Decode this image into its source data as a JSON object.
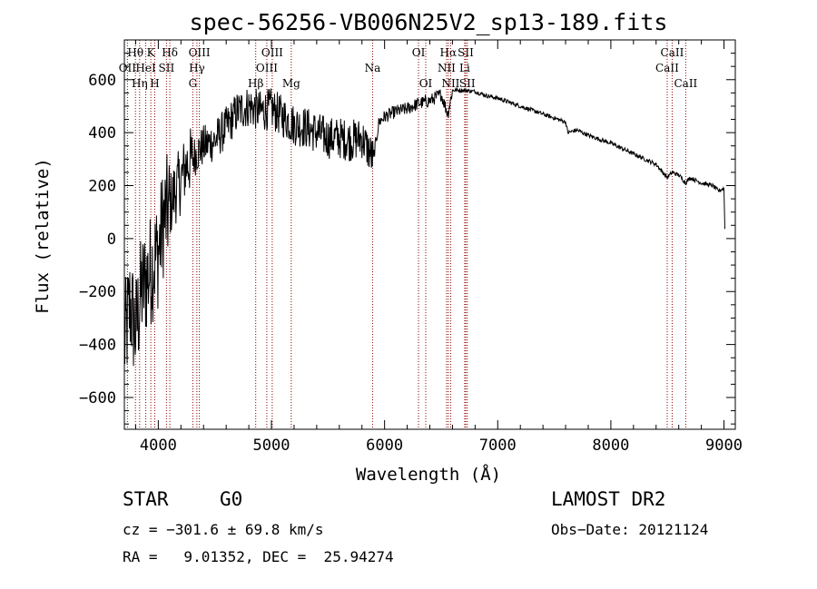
{
  "chart_data": {
    "type": "line",
    "title": "spec-56256-VB006N25V2_sp13-189.fits",
    "xlabel": "Wavelength (Å)",
    "ylabel": "Flux (relative)",
    "xlim": [
      3700,
      9100
    ],
    "ylim": [
      -720,
      750
    ],
    "xticks": [
      4000,
      5000,
      6000,
      7000,
      8000,
      9000
    ],
    "yticks": [
      -600,
      -400,
      -200,
      0,
      200,
      400,
      600
    ],
    "xtick_labels": [
      "4000",
      "5000",
      "6000",
      "7000",
      "8000",
      "9000"
    ],
    "ytick_labels": [
      "−600",
      "−400",
      "−200",
      "0",
      "200",
      "400",
      "600"
    ],
    "grid": false,
    "series": [
      {
        "x": [
          3700,
          3750,
          3800,
          3850,
          3900,
          3950,
          4000,
          4050,
          4100,
          4150,
          4200,
          4250,
          4300,
          4350,
          4400,
          4500,
          4600,
          4700,
          4800,
          4900,
          5000,
          5100,
          5200,
          5300,
          5400,
          5500,
          5600,
          5700,
          5800,
          5900,
          5950,
          6000,
          6100,
          6200,
          6300,
          6400,
          6500,
          6560,
          6600,
          6700,
          6800,
          6900,
          7000,
          7200,
          7400,
          7600,
          7620,
          7700,
          7800,
          8000,
          8200,
          8400,
          8498,
          8542,
          8600,
          8662,
          8700,
          8800,
          8900,
          8950,
          9000,
          9010
        ],
        "y": [
          -400,
          -250,
          -350,
          -200,
          -150,
          -100,
          -50,
          80,
          120,
          180,
          220,
          280,
          300,
          330,
          350,
          370,
          420,
          480,
          500,
          480,
          490,
          460,
          430,
          420,
          400,
          380,
          380,
          370,
          380,
          300,
          440,
          460,
          480,
          490,
          510,
          520,
          545,
          470,
          560,
          560,
          555,
          540,
          530,
          500,
          470,
          440,
          400,
          410,
          390,
          360,
          320,
          280,
          230,
          250,
          240,
          210,
          230,
          210,
          200,
          180,
          190,
          0
        ]
      }
    ],
    "noise": [
      {
        "from": 3700,
        "to": 4100,
        "amp": 220
      },
      {
        "from": 4100,
        "to": 4300,
        "amp": 130
      },
      {
        "from": 4300,
        "to": 5900,
        "amp": 80
      },
      {
        "from": 5900,
        "to": 6600,
        "amp": 25
      },
      {
        "from": 6600,
        "to": 9100,
        "amp": 8
      }
    ],
    "line_color": "#000000",
    "marker_color": "#8b0000",
    "lines": [
      {
        "label": "Hθ",
        "x": 3798,
        "row": 0
      },
      {
        "label": "OII",
        "x": 3727,
        "row": 1
      },
      {
        "label": "Hη",
        "x": 3835,
        "row": 2
      },
      {
        "label": "HeI",
        "x": 3889,
        "row": 1
      },
      {
        "label": "K",
        "x": 3934,
        "row": 0
      },
      {
        "label": "H",
        "x": 3969,
        "row": 2
      },
      {
        "label": "SII",
        "x": 4072,
        "row": 1
      },
      {
        "label": "Hδ",
        "x": 4102,
        "row": 0
      },
      {
        "label": "Hγ",
        "x": 4341,
        "row": 1
      },
      {
        "label": "OIII",
        "x": 4363,
        "row": 0
      },
      {
        "label": "G",
        "x": 4305,
        "row": 2
      },
      {
        "label": "Hβ",
        "x": 4861,
        "row": 2
      },
      {
        "label": "OIII",
        "x": 5007,
        "row": 0
      },
      {
        "label": "OIII",
        "x": 4959,
        "row": 1
      },
      {
        "label": "Mg",
        "x": 5175,
        "row": 2
      },
      {
        "label": "Na",
        "x": 5894,
        "row": 1
      },
      {
        "label": "OI",
        "x": 6300,
        "row": 0
      },
      {
        "label": "OI",
        "x": 6364,
        "row": 2
      },
      {
        "label": "Hα",
        "x": 6563,
        "row": 0
      },
      {
        "label": "NII",
        "x": 6548,
        "row": 1
      },
      {
        "label": "NII",
        "x": 6584,
        "row": 2
      },
      {
        "label": "SII",
        "x": 6717,
        "row": 0
      },
      {
        "label": "Li",
        "x": 6708,
        "row": 1
      },
      {
        "label": "SII",
        "x": 6731,
        "row": 2
      },
      {
        "label": "CaII",
        "x": 8542,
        "row": 0
      },
      {
        "label": "CaII",
        "x": 8498,
        "row": 1
      },
      {
        "label": "CaII",
        "x": 8662,
        "row": 2
      }
    ]
  },
  "info": {
    "object_class": "STAR",
    "subclass": "G0",
    "survey": "LAMOST DR2",
    "redshift": "cz = −301.6 ± 69.8 km/s",
    "obs_date": "Obs−Date: 20121124",
    "coords": "RA =   9.01352, DEC =  25.94274"
  }
}
